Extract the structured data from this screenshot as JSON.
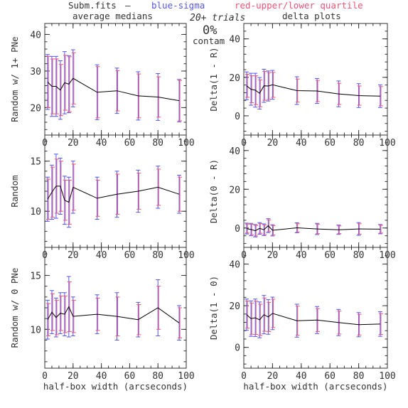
{
  "header": {
    "file": "Subm.fits",
    "dash": "—",
    "legend_blue": "blue-sigma",
    "legend_red": "red-upper/lower quartile",
    "left_title": "average medians",
    "right_title": "delta plots",
    "trials": "20+ trials",
    "contam_pct": "0%",
    "contam_word": "contam",
    "colors": {
      "blue": "#5555ee",
      "red": "#ee5577",
      "line": "#000000",
      "axis": "#333333"
    }
  },
  "chart_data": [
    {
      "type": "line",
      "ylabel": "Random w/ 1+ PNe",
      "xlabel": "",
      "xlim": [
        0,
        100
      ],
      "ylim": [
        12.5,
        43
      ],
      "yticks": [
        20,
        30,
        40
      ],
      "xticks": [
        0,
        20,
        40,
        60,
        80,
        100
      ],
      "x": [
        2,
        5,
        8,
        11,
        14,
        17,
        20,
        37,
        51,
        66,
        80,
        95
      ],
      "y": [
        27,
        25.8,
        25.8,
        24.8,
        26.8,
        26.4,
        28,
        24.2,
        24.6,
        23.2,
        22.9,
        21.9
      ],
      "sigma_err": [
        7.5,
        8.2,
        8.2,
        8.0,
        8.5,
        7.8,
        7.8,
        7.5,
        6.2,
        6.6,
        6.4,
        5.8
      ],
      "quartile_err": [
        7,
        7.5,
        7.5,
        7,
        7.5,
        7.5,
        7,
        7,
        5.5,
        6,
        5.5,
        5.5
      ]
    },
    {
      "type": "line",
      "ylabel": "Random",
      "xlabel": "",
      "xlim": [
        0,
        100
      ],
      "ylim": [
        6.4,
        17.6
      ],
      "yticks": [
        10,
        15
      ],
      "xticks": [
        0,
        20,
        40,
        60,
        80,
        100
      ],
      "x": [
        2,
        5,
        8,
        11,
        14,
        17,
        20,
        37,
        51,
        66,
        80,
        95
      ],
      "y": [
        11.2,
        11.9,
        12.5,
        12.5,
        11.1,
        10.9,
        12.4,
        11.3,
        11.7,
        12.0,
        12.4,
        11.7
      ],
      "sigma_err": [
        2.2,
        2.7,
        3.2,
        2.8,
        2.4,
        2.5,
        2.6,
        2.1,
        2.3,
        2.1,
        2.1,
        1.9
      ],
      "quartile_err": [
        2,
        2.5,
        2.7,
        2.5,
        2,
        2.2,
        2.3,
        1.8,
        2,
        1.8,
        1.8,
        1.7
      ]
    },
    {
      "type": "line",
      "ylabel": "Random w/ 0 PNe",
      "xlabel": "half-box width (arcseconds)",
      "xlim": [
        0,
        100
      ],
      "ylim": [
        6.4,
        17.6
      ],
      "yticks": [
        10,
        15
      ],
      "xticks": [
        0,
        20,
        40,
        60,
        80,
        100
      ],
      "x": [
        2,
        5,
        8,
        11,
        14,
        17,
        20,
        37,
        51,
        66,
        80,
        95
      ],
      "y": [
        10.9,
        11.6,
        11.1,
        11.5,
        11.4,
        12.1,
        11.2,
        11.4,
        11.2,
        10.9,
        12.0,
        10.6
      ],
      "sigma_err": [
        1.8,
        2.0,
        1.8,
        1.9,
        2.0,
        2.8,
        1.8,
        1.8,
        2.2,
        1.6,
        2.6,
        1.6
      ],
      "quartile_err": [
        1.5,
        1.7,
        1.6,
        1.6,
        1.7,
        2.3,
        1.5,
        1.5,
        1.8,
        1.4,
        2,
        1.4
      ]
    },
    {
      "type": "line",
      "ylabel": "Delta(1 - R)",
      "xlabel": "",
      "xlim": [
        0,
        100
      ],
      "ylim": [
        -10,
        48
      ],
      "yticks": [
        0,
        20,
        40
      ],
      "xticks": [
        0,
        20,
        40,
        60,
        80,
        100
      ],
      "x": [
        2,
        5,
        8,
        11,
        14,
        17,
        20,
        37,
        51,
        66,
        80,
        95
      ],
      "y": [
        15.6,
        13.8,
        13.3,
        11.7,
        15.6,
        15.5,
        16.1,
        13.1,
        12.9,
        11.4,
        10.5,
        10.2
      ],
      "sigma_err": [
        7.2,
        8.3,
        8.8,
        8.2,
        8.6,
        7.8,
        7.5,
        7.2,
        6.5,
        6.7,
        6.2,
        5.9
      ],
      "quartile_err": [
        6,
        7,
        7.5,
        7,
        7.5,
        7,
        6.5,
        6,
        5.5,
        5.5,
        5,
        5
      ]
    },
    {
      "type": "line",
      "ylabel": "Delta(0 - R)",
      "xlabel": "",
      "xlim": [
        0,
        100
      ],
      "ylim": [
        -10,
        48
      ],
      "yticks": [
        0,
        20,
        40
      ],
      "xticks": [
        0,
        20,
        40,
        60,
        80,
        100
      ],
      "x": [
        2,
        5,
        8,
        11,
        14,
        17,
        20,
        37,
        51,
        66,
        80,
        95
      ],
      "y": [
        -0.3,
        -0.8,
        -1.4,
        -0.2,
        -0.9,
        1.2,
        -1.2,
        0.1,
        -0.5,
        -0.9,
        -0.5,
        -0.6
      ],
      "sigma_err": [
        2.8,
        3.2,
        3.2,
        3.0,
        3.0,
        3.6,
        2.9,
        2.6,
        2.9,
        2.4,
        3.3,
        2.4
      ],
      "quartile_err": [
        2.3,
        2.7,
        2.7,
        2.5,
        2.5,
        3,
        2.4,
        2.1,
        2.4,
        2,
        2.7,
        2
      ]
    },
    {
      "type": "line",
      "ylabel": "Delta(1 - 0)",
      "xlabel": "half-box width (arcseconds)",
      "xlim": [
        0,
        100
      ],
      "ylim": [
        -10,
        48
      ],
      "yticks": [
        0,
        20,
        40
      ],
      "xticks": [
        0,
        20,
        40,
        60,
        80,
        100
      ],
      "x": [
        2,
        5,
        8,
        11,
        14,
        17,
        20,
        37,
        51,
        66,
        80,
        95
      ],
      "y": [
        15.7,
        13.8,
        14.2,
        13.2,
        15.7,
        14.6,
        16.3,
        12.8,
        13.1,
        11.9,
        10.9,
        11.2
      ],
      "sigma_err": [
        7.5,
        8.5,
        9.0,
        8.6,
        9.2,
        8.3,
        7.8,
        7.9,
        6.5,
        6.3,
        5.8,
        5.9
      ],
      "quartile_err": [
        6.5,
        7.5,
        8,
        7.5,
        8,
        7,
        6.8,
        7,
        5.5,
        5.5,
        5,
        5
      ]
    }
  ]
}
